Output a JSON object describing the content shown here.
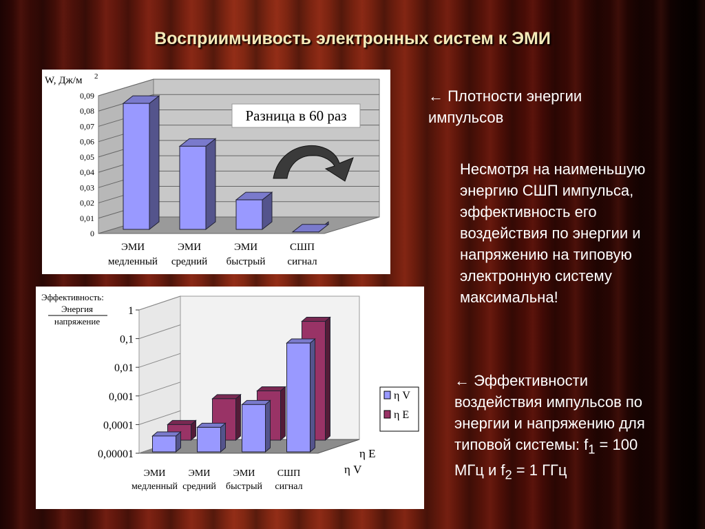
{
  "slide": {
    "title": "Восприимчивость электронных систем к ЭМИ",
    "note_energy": "← Плотности энергии импульсов",
    "note_main": "Несмотря на наименьшую энергию СШП импульса, эффективность его воздействия по энергии и напряжению на типовую электронную систему максимальна!",
    "note_eff_line1": "← Эффективности воздействия импульсов по энергии и напряжению для типовой системы: f",
    "note_eff_sub1": "1",
    "note_eff_line2": " = 100 МГц и f",
    "note_eff_sub2": "2",
    "note_eff_line3": " = 1 ГГц"
  },
  "chart_data": [
    {
      "type": "bar",
      "ylabel": "W, Дж/м",
      "ylabel_sup": "2",
      "categories": [
        [
          "ЭМИ",
          "медленный"
        ],
        [
          "ЭМИ",
          "средний"
        ],
        [
          "ЭМИ",
          "быстрый"
        ],
        [
          "СШП",
          "сигнал"
        ]
      ],
      "values": [
        0.085,
        0.057,
        0.022,
        0.001
      ],
      "ylim": [
        0,
        0.09
      ],
      "yticks": [
        "0",
        "0,01",
        "0,02",
        "0,03",
        "0,04",
        "0,05",
        "0,06",
        "0,07",
        "0,08",
        "0,09"
      ],
      "annotation": "Разница в 60 раз",
      "bar_color": "#9999ff",
      "grid": true
    },
    {
      "type": "bar",
      "ylabel_line1": "Эффективность:",
      "ylabel_num": "Энергия",
      "ylabel_den": "напряжение",
      "scale": "log",
      "categories": [
        [
          "ЭМИ",
          "медленный"
        ],
        [
          "ЭМИ",
          "средний"
        ],
        [
          "ЭМИ",
          "быстрый"
        ],
        [
          "СШП",
          "сигнал"
        ]
      ],
      "yticks": [
        "1",
        "0,1",
        "0,01",
        "0,001",
        "0,0001",
        "0,00001"
      ],
      "ylim": [
        1e-05,
        1
      ],
      "series": [
        {
          "name": "η V",
          "color": "#9999ff",
          "values": [
            4e-05,
            8e-05,
            0.0005,
            0.07
          ]
        },
        {
          "name": "η E",
          "color": "#993366",
          "values": [
            0.0001,
            0.0008,
            0.0015,
            0.4
          ]
        }
      ],
      "depth_labels": [
        "η E",
        "η V"
      ],
      "grid": true
    }
  ]
}
